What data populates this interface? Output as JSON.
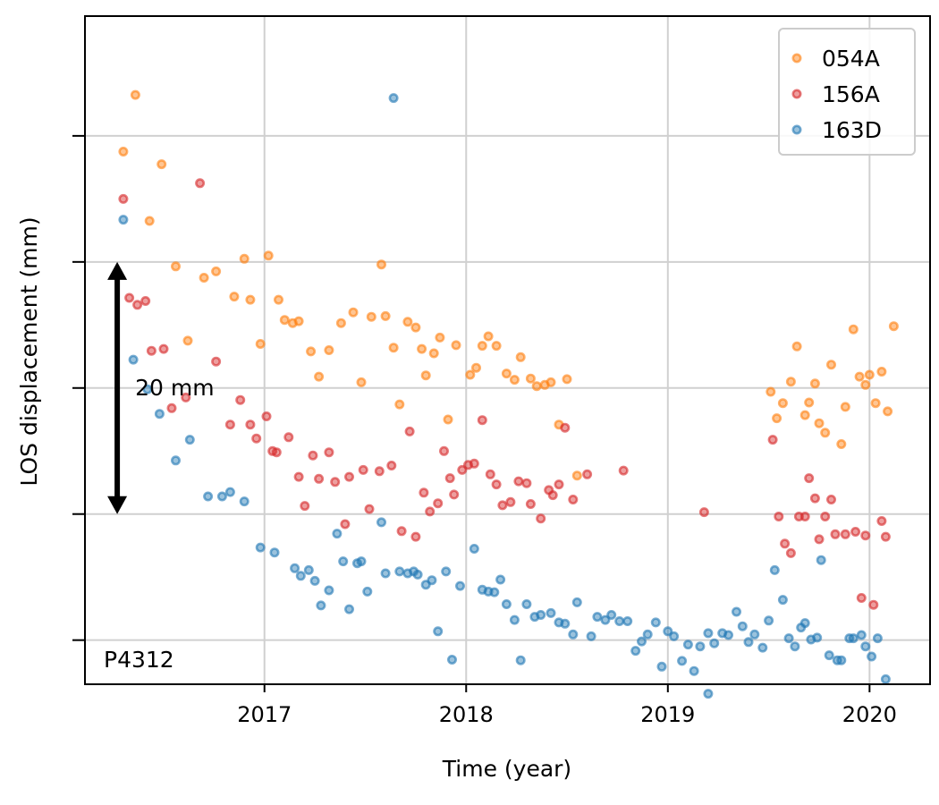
{
  "chart_data": {
    "type": "scatter",
    "xlabel": "Time (year)",
    "ylabel": "LOS displacement (mm)",
    "xticks": [
      2017,
      2018,
      2019,
      2020
    ],
    "xlim": [
      2016.11,
      2020.3
    ],
    "ylim": [
      -47,
      59
    ],
    "yticks": [
      -40,
      -20,
      0,
      20,
      40
    ],
    "y_tick_labels_shown": false,
    "grid": true,
    "legend_position": "top-right",
    "station_label": "P4312",
    "scale_annotation": {
      "text": "20 mm",
      "x": 2016.27,
      "y_from": 20,
      "y_to": -20
    },
    "series": [
      {
        "name": "054A",
        "color": "#ff7f0e",
        "points": [
          [
            2016.3,
            37.5
          ],
          [
            2016.36,
            46.5
          ],
          [
            2016.43,
            26.5
          ],
          [
            2016.49,
            35.5
          ],
          [
            2016.56,
            19.3
          ],
          [
            2016.62,
            7.5
          ],
          [
            2016.7,
            17.5
          ],
          [
            2016.76,
            18.5
          ],
          [
            2016.85,
            14.5
          ],
          [
            2016.9,
            20.5
          ],
          [
            2016.93,
            14.0
          ],
          [
            2016.98,
            7.0
          ],
          [
            2017.02,
            21.0
          ],
          [
            2017.07,
            14.0
          ],
          [
            2017.1,
            10.8
          ],
          [
            2017.14,
            10.3
          ],
          [
            2017.17,
            10.6
          ],
          [
            2017.23,
            5.8
          ],
          [
            2017.27,
            1.8
          ],
          [
            2017.32,
            6.0
          ],
          [
            2017.38,
            10.3
          ],
          [
            2017.44,
            12.0
          ],
          [
            2017.48,
            0.9
          ],
          [
            2017.53,
            11.3
          ],
          [
            2017.58,
            19.6
          ],
          [
            2017.6,
            11.4
          ],
          [
            2017.64,
            6.4
          ],
          [
            2017.67,
            -2.6
          ],
          [
            2017.71,
            10.5
          ],
          [
            2017.75,
            9.6
          ],
          [
            2017.78,
            6.2
          ],
          [
            2017.8,
            2.0
          ],
          [
            2017.84,
            5.5
          ],
          [
            2017.87,
            8.0
          ],
          [
            2017.91,
            -5.0
          ],
          [
            2017.95,
            6.8
          ],
          [
            2018.02,
            2.1
          ],
          [
            2018.05,
            3.2
          ],
          [
            2018.08,
            6.7
          ],
          [
            2018.11,
            8.2
          ],
          [
            2018.15,
            6.7
          ],
          [
            2018.2,
            2.3
          ],
          [
            2018.24,
            1.3
          ],
          [
            2018.27,
            4.9
          ],
          [
            2018.32,
            1.5
          ],
          [
            2018.35,
            0.3
          ],
          [
            2018.39,
            0.5
          ],
          [
            2018.42,
            0.9
          ],
          [
            2018.46,
            -5.8
          ],
          [
            2018.5,
            1.4
          ],
          [
            2018.55,
            -13.9
          ],
          [
            2019.51,
            -0.6
          ],
          [
            2019.54,
            -4.8
          ],
          [
            2019.57,
            -2.4
          ],
          [
            2019.61,
            1.0
          ],
          [
            2019.64,
            6.6
          ],
          [
            2019.68,
            -4.3
          ],
          [
            2019.7,
            -2.3
          ],
          [
            2019.73,
            0.7
          ],
          [
            2019.75,
            -5.6
          ],
          [
            2019.78,
            -7.1
          ],
          [
            2019.81,
            3.7
          ],
          [
            2019.86,
            -8.9
          ],
          [
            2019.88,
            -3.0
          ],
          [
            2019.92,
            9.3
          ],
          [
            2019.95,
            1.8
          ],
          [
            2019.98,
            0.5
          ],
          [
            2020.0,
            2.1
          ],
          [
            2020.03,
            -2.4
          ],
          [
            2020.06,
            2.6
          ],
          [
            2020.09,
            -3.7
          ],
          [
            2020.12,
            9.8
          ]
        ]
      },
      {
        "name": "156A",
        "color": "#d62728",
        "points": [
          [
            2016.3,
            30.0
          ],
          [
            2016.33,
            14.3
          ],
          [
            2016.37,
            13.2
          ],
          [
            2016.41,
            13.8
          ],
          [
            2016.44,
            5.9
          ],
          [
            2016.5,
            6.2
          ],
          [
            2016.54,
            -3.2
          ],
          [
            2016.61,
            -1.5
          ],
          [
            2016.68,
            32.5
          ],
          [
            2016.76,
            4.2
          ],
          [
            2016.83,
            -5.8
          ],
          [
            2016.88,
            -1.9
          ],
          [
            2016.93,
            -5.8
          ],
          [
            2016.96,
            -8.0
          ],
          [
            2017.01,
            -4.5
          ],
          [
            2017.04,
            -10.0
          ],
          [
            2017.06,
            -10.2
          ],
          [
            2017.12,
            -7.8
          ],
          [
            2017.17,
            -14.1
          ],
          [
            2017.2,
            -18.7
          ],
          [
            2017.24,
            -10.7
          ],
          [
            2017.27,
            -14.4
          ],
          [
            2017.32,
            -10.2
          ],
          [
            2017.35,
            -14.9
          ],
          [
            2017.4,
            -21.6
          ],
          [
            2017.42,
            -14.1
          ],
          [
            2017.49,
            -13.0
          ],
          [
            2017.52,
            -19.2
          ],
          [
            2017.57,
            -13.2
          ],
          [
            2017.63,
            -12.3
          ],
          [
            2017.68,
            -22.7
          ],
          [
            2017.72,
            -6.9
          ],
          [
            2017.75,
            -23.6
          ],
          [
            2017.79,
            -16.6
          ],
          [
            2017.82,
            -19.6
          ],
          [
            2017.86,
            -18.3
          ],
          [
            2017.89,
            -10.0
          ],
          [
            2017.92,
            -14.3
          ],
          [
            2017.94,
            -16.9
          ],
          [
            2017.98,
            -13.0
          ],
          [
            2018.01,
            -12.2
          ],
          [
            2018.04,
            -12.0
          ],
          [
            2018.08,
            -5.1
          ],
          [
            2018.12,
            -13.7
          ],
          [
            2018.15,
            -15.3
          ],
          [
            2018.18,
            -18.6
          ],
          [
            2018.22,
            -18.1
          ],
          [
            2018.26,
            -14.8
          ],
          [
            2018.3,
            -15.1
          ],
          [
            2018.32,
            -18.4
          ],
          [
            2018.37,
            -20.7
          ],
          [
            2018.41,
            -16.2
          ],
          [
            2018.43,
            -17.0
          ],
          [
            2018.46,
            -15.3
          ],
          [
            2018.49,
            -6.3
          ],
          [
            2018.53,
            -17.7
          ],
          [
            2018.6,
            -13.7
          ],
          [
            2018.78,
            -13.1
          ],
          [
            2019.18,
            -19.7
          ],
          [
            2019.52,
            -8.2
          ],
          [
            2019.55,
            -20.4
          ],
          [
            2019.58,
            -24.7
          ],
          [
            2019.61,
            -26.2
          ],
          [
            2019.65,
            -20.4
          ],
          [
            2019.68,
            -20.4
          ],
          [
            2019.7,
            -14.3
          ],
          [
            2019.73,
            -17.5
          ],
          [
            2019.75,
            -24.0
          ],
          [
            2019.78,
            -20.4
          ],
          [
            2019.81,
            -17.7
          ],
          [
            2019.83,
            -23.2
          ],
          [
            2019.88,
            -23.2
          ],
          [
            2019.93,
            -22.8
          ],
          [
            2019.96,
            -33.3
          ],
          [
            2019.98,
            -23.4
          ],
          [
            2020.02,
            -34.4
          ],
          [
            2020.06,
            -21.1
          ],
          [
            2020.08,
            -23.6
          ]
        ]
      },
      {
        "name": "163D",
        "color": "#1f77b4",
        "points": [
          [
            2016.3,
            26.7
          ],
          [
            2016.35,
            4.5
          ],
          [
            2016.42,
            -0.2
          ],
          [
            2016.48,
            -4.1
          ],
          [
            2016.56,
            -11.5
          ],
          [
            2016.63,
            -8.2
          ],
          [
            2016.72,
            -17.2
          ],
          [
            2016.79,
            -17.2
          ],
          [
            2016.83,
            -16.5
          ],
          [
            2016.9,
            -18.0
          ],
          [
            2016.98,
            -25.3
          ],
          [
            2017.05,
            -26.1
          ],
          [
            2017.15,
            -28.6
          ],
          [
            2017.18,
            -29.8
          ],
          [
            2017.22,
            -28.9
          ],
          [
            2017.25,
            -30.6
          ],
          [
            2017.28,
            -34.5
          ],
          [
            2017.32,
            -32.1
          ],
          [
            2017.36,
            -23.1
          ],
          [
            2017.39,
            -27.5
          ],
          [
            2017.42,
            -35.1
          ],
          [
            2017.46,
            -27.8
          ],
          [
            2017.48,
            -27.5
          ],
          [
            2017.51,
            -32.3
          ],
          [
            2017.58,
            -21.3
          ],
          [
            2017.6,
            -29.4
          ],
          [
            2017.64,
            46.0
          ],
          [
            2017.67,
            -29.1
          ],
          [
            2017.71,
            -29.4
          ],
          [
            2017.74,
            -29.1
          ],
          [
            2017.76,
            -29.6
          ],
          [
            2017.8,
            -31.2
          ],
          [
            2017.83,
            -30.5
          ],
          [
            2017.86,
            -38.6
          ],
          [
            2017.9,
            -29.1
          ],
          [
            2017.93,
            -43.1
          ],
          [
            2017.97,
            -31.4
          ],
          [
            2018.04,
            -25.5
          ],
          [
            2018.08,
            -32.0
          ],
          [
            2018.11,
            -32.3
          ],
          [
            2018.14,
            -32.4
          ],
          [
            2018.17,
            -30.4
          ],
          [
            2018.2,
            -34.3
          ],
          [
            2018.24,
            -36.8
          ],
          [
            2018.27,
            -43.2
          ],
          [
            2018.3,
            -34.3
          ],
          [
            2018.34,
            -36.3
          ],
          [
            2018.37,
            -36.0
          ],
          [
            2018.42,
            -35.7
          ],
          [
            2018.46,
            -37.2
          ],
          [
            2018.49,
            -37.4
          ],
          [
            2018.53,
            -39.1
          ],
          [
            2018.55,
            -34.0
          ],
          [
            2018.62,
            -39.4
          ],
          [
            2018.65,
            -36.3
          ],
          [
            2018.69,
            -36.8
          ],
          [
            2018.72,
            -36.0
          ],
          [
            2018.76,
            -37.0
          ],
          [
            2018.8,
            -37.0
          ],
          [
            2018.84,
            -41.7
          ],
          [
            2018.87,
            -40.2
          ],
          [
            2018.9,
            -39.1
          ],
          [
            2018.94,
            -37.2
          ],
          [
            2018.97,
            -44.2
          ],
          [
            2019.0,
            -38.6
          ],
          [
            2019.03,
            -39.4
          ],
          [
            2019.07,
            -43.3
          ],
          [
            2019.1,
            -40.7
          ],
          [
            2019.13,
            -44.9
          ],
          [
            2019.16,
            -41.0
          ],
          [
            2019.2,
            -38.9
          ],
          [
            2019.2,
            -48.5
          ],
          [
            2019.23,
            -40.5
          ],
          [
            2019.27,
            -38.9
          ],
          [
            2019.3,
            -39.2
          ],
          [
            2019.34,
            -35.5
          ],
          [
            2019.37,
            -37.8
          ],
          [
            2019.4,
            -40.3
          ],
          [
            2019.43,
            -39.1
          ],
          [
            2019.47,
            -41.2
          ],
          [
            2019.5,
            -36.9
          ],
          [
            2019.53,
            -28.9
          ],
          [
            2019.57,
            -33.6
          ],
          [
            2019.6,
            -39.7
          ],
          [
            2019.63,
            -41.0
          ],
          [
            2019.66,
            -38.0
          ],
          [
            2019.68,
            -37.3
          ],
          [
            2019.71,
            -39.9
          ],
          [
            2019.74,
            -39.6
          ],
          [
            2019.76,
            -27.3
          ],
          [
            2019.8,
            -42.4
          ],
          [
            2019.84,
            -43.2
          ],
          [
            2019.86,
            -43.2
          ],
          [
            2019.9,
            -39.7
          ],
          [
            2019.92,
            -39.7
          ],
          [
            2019.96,
            -39.2
          ],
          [
            2019.98,
            -41.0
          ],
          [
            2020.01,
            -42.6
          ],
          [
            2020.04,
            -39.7
          ],
          [
            2020.08,
            -46.2
          ]
        ]
      }
    ]
  }
}
